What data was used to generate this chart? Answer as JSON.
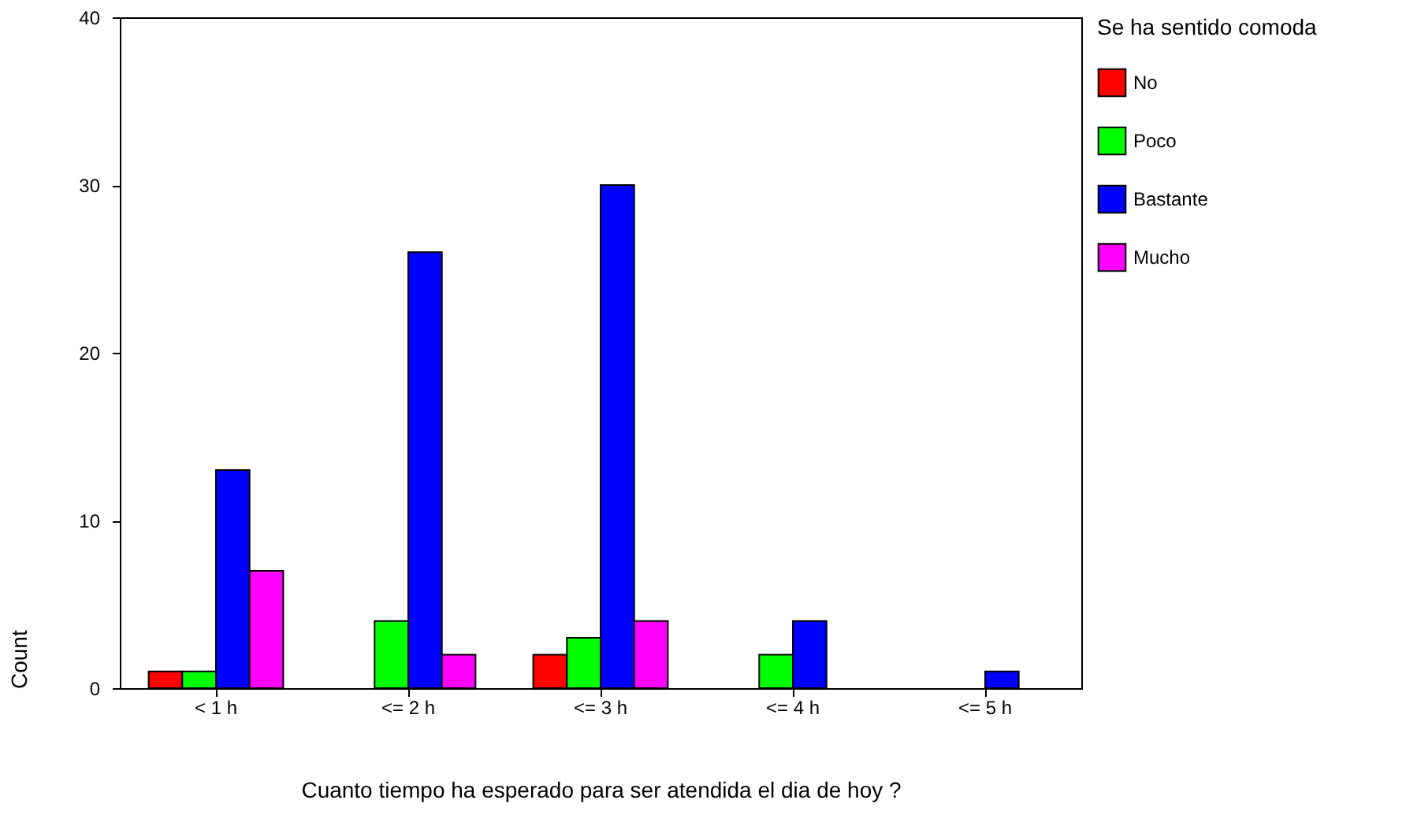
{
  "chart_data": {
    "type": "bar",
    "xlabel": "Cuanto tiempo ha esperado para ser atendida el dia de hoy ?",
    "ylabel": "Count",
    "legend_title": "Se ha sentido comoda",
    "categories": [
      "< 1 h",
      "<= 2 h",
      "<= 3 h",
      "<= 4 h",
      "<= 5 h"
    ],
    "series": [
      {
        "name": "No",
        "color": "#ff0000",
        "values": [
          1,
          null,
          2,
          null,
          null
        ]
      },
      {
        "name": "Poco",
        "color": "#00ff00",
        "values": [
          1,
          4,
          3,
          2,
          null
        ]
      },
      {
        "name": "Bastante",
        "color": "#0000ff",
        "values": [
          13,
          26,
          30,
          4,
          1
        ]
      },
      {
        "name": "Mucho",
        "color": "#ff00ff",
        "values": [
          7,
          2,
          4,
          null,
          null
        ]
      }
    ],
    "ylim": [
      0,
      40
    ],
    "yticks": [
      0,
      10,
      20,
      30,
      40
    ],
    "grid": false,
    "legend": "right"
  }
}
